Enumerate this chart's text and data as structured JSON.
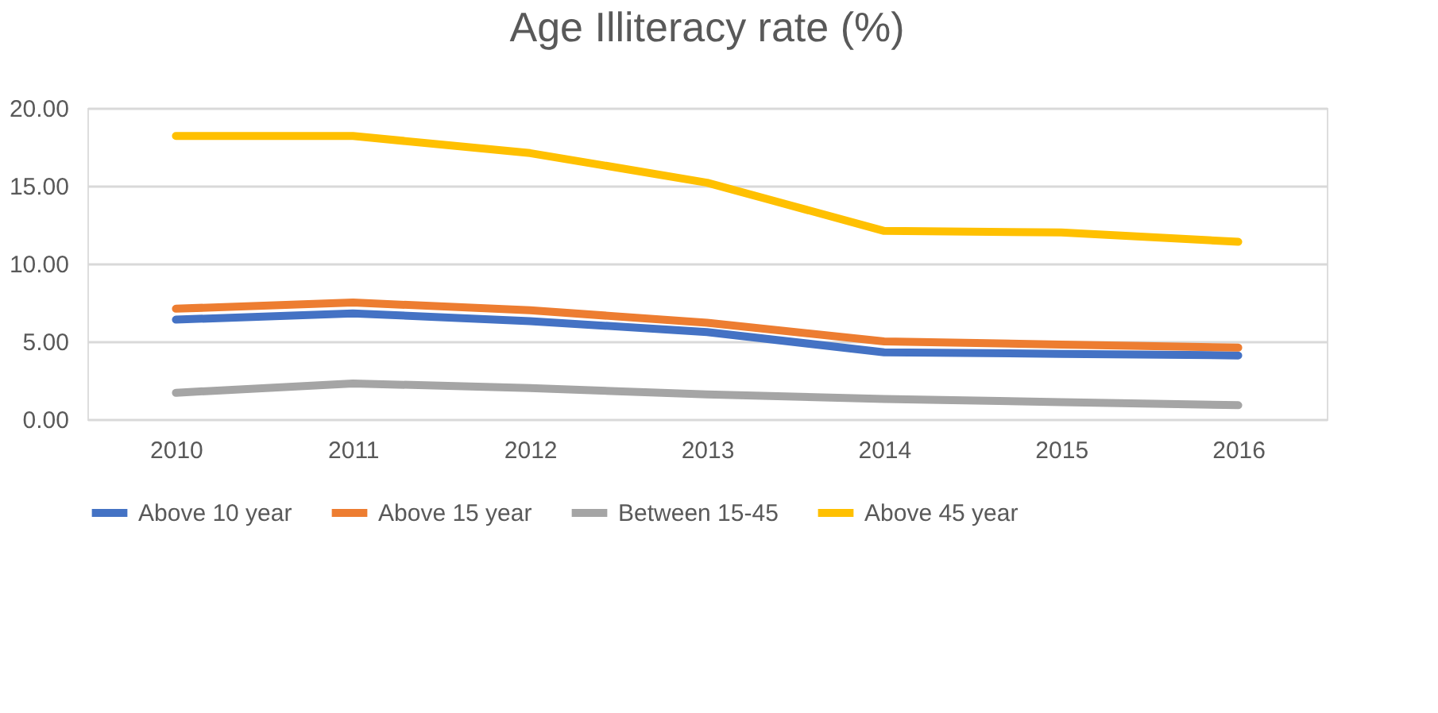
{
  "chart_data": {
    "type": "line",
    "title": "Age Illiteracy rate (%)",
    "categories": [
      "2010",
      "2011",
      "2012",
      "2013",
      "2014",
      "2015",
      "2016"
    ],
    "series": [
      {
        "name": "Above 10 year",
        "color": "#4472c4",
        "values": [
          6.4,
          6.8,
          6.3,
          5.6,
          4.3,
          4.2,
          4.1
        ]
      },
      {
        "name": "Above 15 year",
        "color": "#ed7d31",
        "values": [
          7.1,
          7.5,
          7.0,
          6.2,
          5.0,
          4.8,
          4.6
        ]
      },
      {
        "name": "Between 15-45",
        "color": "#a5a5a5",
        "values": [
          1.7,
          2.3,
          2.0,
          1.6,
          1.3,
          1.1,
          0.9
        ]
      },
      {
        "name": "Above 45 year",
        "color": "#ffc000",
        "values": [
          18.2,
          18.2,
          17.1,
          15.2,
          12.1,
          12.0,
          11.4
        ]
      }
    ],
    "ylim": [
      0,
      20
    ],
    "yticks": [
      {
        "value": 0,
        "label": "0.00"
      },
      {
        "value": 5,
        "label": "5.00"
      },
      {
        "value": 10,
        "label": "10.00"
      },
      {
        "value": 15,
        "label": "15.00"
      },
      {
        "value": 20,
        "label": "20.00"
      }
    ],
    "grid": "y",
    "legend": "bottom",
    "marker": "none",
    "line_style": "solid"
  }
}
